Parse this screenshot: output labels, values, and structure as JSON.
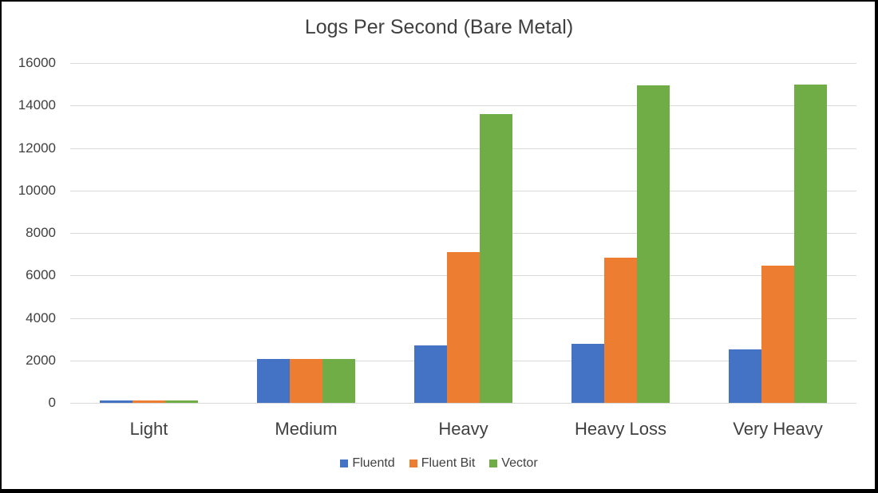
{
  "chart_data": {
    "type": "bar",
    "title": "Logs Per Second (Bare Metal)",
    "xlabel": "",
    "ylabel": "",
    "ylim": [
      0,
      16000
    ],
    "yticks": [
      0,
      2000,
      4000,
      6000,
      8000,
      10000,
      12000,
      14000,
      16000
    ],
    "grid": true,
    "legend_position": "bottom",
    "categories": [
      "Light",
      "Medium",
      "Heavy",
      "Heavy Loss",
      "Very Heavy"
    ],
    "series": [
      {
        "name": "Fluentd",
        "color": "#4472c4",
        "values": [
          100,
          2080,
          2700,
          2780,
          2500
        ]
      },
      {
        "name": "Fluent Bit",
        "color": "#ed7d31",
        "values": [
          100,
          2080,
          7100,
          6850,
          6450
        ]
      },
      {
        "name": "Vector",
        "color": "#70ad47",
        "values": [
          100,
          2050,
          13600,
          14950,
          15000
        ]
      }
    ]
  }
}
